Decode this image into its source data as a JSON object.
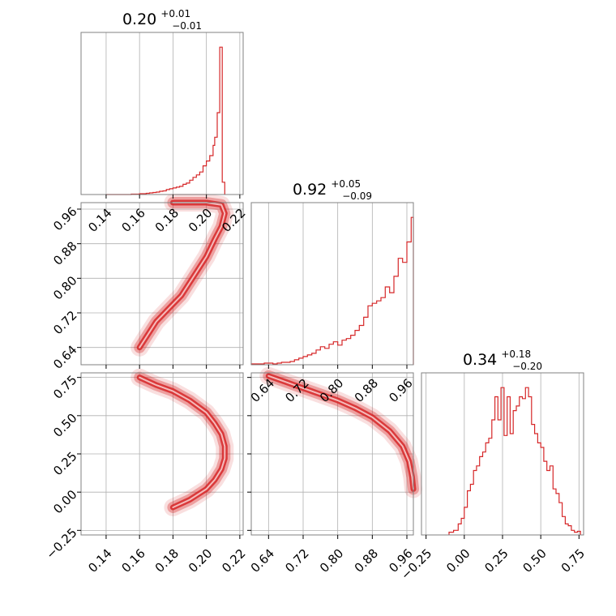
{
  "colors": {
    "series": "#d62728",
    "grid": "#b0b0b0",
    "axes": "#808080"
  },
  "panels": {
    "p0_0": {
      "title": {
        "value": "0.20",
        "plus": "+0.01",
        "minus": "−0.01"
      }
    },
    "p1_1": {
      "title": {
        "value": "0.92",
        "plus": "+0.05",
        "minus": "−0.09"
      }
    },
    "p2_2": {
      "title": {
        "value": "0.34",
        "plus": "+0.18",
        "minus": "−0.20"
      }
    }
  },
  "chart_data": [
    {
      "type": "histogram",
      "panel": "p0_0",
      "parameter_index": 0,
      "xlim": [
        0.125,
        0.222
      ],
      "grid": true,
      "x_ticks": [
        "0.14",
        "0.16",
        "0.18",
        "0.20",
        "0.22"
      ],
      "bin_edges": [
        0.14,
        0.145,
        0.15,
        0.155,
        0.16,
        0.162,
        0.164,
        0.166,
        0.168,
        0.17,
        0.172,
        0.174,
        0.176,
        0.178,
        0.18,
        0.182,
        0.184,
        0.186,
        0.188,
        0.19,
        0.192,
        0.194,
        0.196,
        0.198,
        0.2,
        0.202,
        0.204,
        0.205,
        0.2065,
        0.208,
        0.2095,
        0.211
      ],
      "counts": [
        0,
        0,
        0,
        1,
        2,
        2,
        3,
        4,
        5,
        6,
        8,
        9,
        12,
        14,
        16,
        18,
        20,
        25,
        28,
        35,
        42,
        48,
        55,
        70,
        82,
        95,
        120,
        140,
        200,
        360,
        30
      ]
    },
    {
      "type": "histogram",
      "panel": "p1_1",
      "parameter_index": 1,
      "xlim": [
        0.6,
        0.975
      ],
      "grid": true,
      "x_ticks": [
        "0.64",
        "0.72",
        "0.80",
        "0.88",
        "0.96"
      ],
      "bin_edges": [
        0.6,
        0.61,
        0.62,
        0.63,
        0.64,
        0.65,
        0.66,
        0.67,
        0.68,
        0.69,
        0.7,
        0.71,
        0.72,
        0.73,
        0.74,
        0.75,
        0.76,
        0.77,
        0.78,
        0.79,
        0.8,
        0.81,
        0.82,
        0.83,
        0.84,
        0.85,
        0.86,
        0.87,
        0.88,
        0.89,
        0.9,
        0.91,
        0.92,
        0.93,
        0.94,
        0.95,
        0.96,
        0.97,
        0.975
      ],
      "counts": [
        1,
        1,
        1,
        2,
        2,
        1,
        2,
        3,
        3,
        4,
        6,
        8,
        10,
        12,
        14,
        18,
        22,
        20,
        25,
        28,
        24,
        30,
        32,
        36,
        42,
        48,
        58,
        72,
        75,
        78,
        82,
        95,
        88,
        108,
        130,
        125,
        150,
        180
      ]
    },
    {
      "type": "histogram",
      "panel": "p2_2",
      "parameter_index": 2,
      "xlim": [
        -0.28,
        0.78
      ],
      "grid": true,
      "x_ticks": [
        "−0.25",
        "0.00",
        "0.25",
        "0.50",
        "0.75"
      ],
      "bin_edges": [
        -0.1,
        -0.07,
        -0.04,
        -0.02,
        0.0,
        0.02,
        0.04,
        0.06,
        0.08,
        0.1,
        0.12,
        0.14,
        0.16,
        0.18,
        0.2,
        0.22,
        0.24,
        0.26,
        0.28,
        0.3,
        0.32,
        0.34,
        0.36,
        0.38,
        0.4,
        0.42,
        0.44,
        0.46,
        0.48,
        0.5,
        0.52,
        0.54,
        0.56,
        0.58,
        0.6,
        0.62,
        0.64,
        0.66,
        0.68,
        0.7,
        0.72,
        0.74,
        0.76
      ],
      "counts": [
        3,
        5,
        12,
        18,
        30,
        48,
        55,
        70,
        75,
        85,
        90,
        100,
        105,
        125,
        150,
        125,
        160,
        108,
        150,
        110,
        135,
        140,
        150,
        148,
        160,
        150,
        120,
        110,
        100,
        95,
        80,
        70,
        75,
        50,
        45,
        35,
        20,
        12,
        10,
        5,
        3,
        4
      ]
    },
    {
      "type": "scatter",
      "subtype": "2d_density_contour",
      "panel": "p1_0",
      "x_parameter": 0,
      "y_parameter": 1,
      "xlim": [
        0.125,
        0.222
      ],
      "ylim": [
        0.6,
        0.975
      ],
      "grid": true,
      "x_ticks": [],
      "y_ticks": [
        "0.64",
        "0.72",
        "0.80",
        "0.88",
        "0.96"
      ],
      "ridge": [
        [
          0.16,
          0.64
        ],
        [
          0.165,
          0.67
        ],
        [
          0.17,
          0.7
        ],
        [
          0.175,
          0.72
        ],
        [
          0.18,
          0.74
        ],
        [
          0.185,
          0.76
        ],
        [
          0.19,
          0.79
        ],
        [
          0.195,
          0.82
        ],
        [
          0.2,
          0.85
        ],
        [
          0.205,
          0.89
        ],
        [
          0.209,
          0.92
        ],
        [
          0.211,
          0.95
        ],
        [
          0.209,
          0.97
        ],
        [
          0.2,
          0.975
        ],
        [
          0.18,
          0.975
        ]
      ]
    },
    {
      "type": "scatter",
      "subtype": "2d_density_contour",
      "panel": "p2_0",
      "x_parameter": 0,
      "y_parameter": 2,
      "xlim": [
        0.125,
        0.222
      ],
      "ylim": [
        -0.28,
        0.78
      ],
      "grid": true,
      "x_ticks": [
        "0.14",
        "0.16",
        "0.18",
        "0.20",
        "0.22"
      ],
      "y_ticks": [
        "−0.25",
        "0.00",
        "0.25",
        "0.50",
        "0.75"
      ],
      "ridge": [
        [
          0.16,
          0.75
        ],
        [
          0.17,
          0.7
        ],
        [
          0.18,
          0.66
        ],
        [
          0.19,
          0.6
        ],
        [
          0.2,
          0.52
        ],
        [
          0.205,
          0.45
        ],
        [
          0.209,
          0.38
        ],
        [
          0.211,
          0.3
        ],
        [
          0.211,
          0.22
        ],
        [
          0.209,
          0.15
        ],
        [
          0.205,
          0.08
        ],
        [
          0.2,
          0.02
        ],
        [
          0.19,
          -0.05
        ],
        [
          0.18,
          -0.1
        ]
      ]
    },
    {
      "type": "scatter",
      "subtype": "2d_density_contour",
      "panel": "p2_1",
      "x_parameter": 1,
      "y_parameter": 2,
      "xlim": [
        0.6,
        0.975
      ],
      "ylim": [
        -0.28,
        0.78
      ],
      "grid": true,
      "x_ticks": [
        "0.64",
        "0.72",
        "0.80",
        "0.88",
        "0.96"
      ],
      "y_ticks": [],
      "ridge": [
        [
          0.64,
          0.76
        ],
        [
          0.68,
          0.72
        ],
        [
          0.72,
          0.68
        ],
        [
          0.76,
          0.64
        ],
        [
          0.8,
          0.6
        ],
        [
          0.84,
          0.55
        ],
        [
          0.88,
          0.49
        ],
        [
          0.92,
          0.4
        ],
        [
          0.95,
          0.3
        ],
        [
          0.965,
          0.2
        ],
        [
          0.972,
          0.1
        ],
        [
          0.975,
          0.02
        ]
      ]
    }
  ]
}
